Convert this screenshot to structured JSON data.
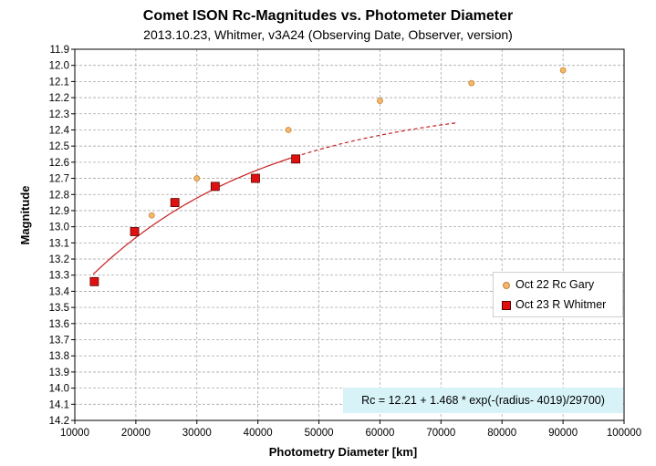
{
  "chart_data": {
    "type": "scatter",
    "title": "Comet ISON Rc-Magnitudes  vs. Photometer Diameter",
    "subtitle": "2013.10.23,  Whitmer, v3A24 (Observing Date, Observer, version)",
    "xlabel": "Photometry Diameter  [km]",
    "ylabel": "Magnitude",
    "xlim": [
      10000,
      100000
    ],
    "ylim": [
      11.9,
      14.2
    ],
    "y_inverted": true,
    "grid": true,
    "x_ticks": [
      "10000",
      "20000",
      "30000",
      "40000",
      "50000",
      "60000",
      "70000",
      "80000",
      "90000",
      "100000"
    ],
    "y_ticks": [
      "11.9",
      "12.0",
      "12.1",
      "12.2",
      "12.3",
      "12.4",
      "12.5",
      "12.6",
      "12.7",
      "12.8",
      "12.9",
      "13.0",
      "13.1",
      "13.2",
      "13.3",
      "13.4",
      "13.5",
      "13.6",
      "13.7",
      "13.8",
      "13.9",
      "14.0",
      "14.1",
      "14.2"
    ],
    "legend_position": "right",
    "series": [
      {
        "name": "Oct 22 Rc Gary",
        "marker": "circle",
        "color": "#f5b768",
        "x": [
          22600,
          30000,
          45000,
          60000,
          75000,
          90000
        ],
        "y": [
          12.93,
          12.7,
          12.4,
          12.22,
          12.11,
          12.03
        ]
      },
      {
        "name": "Oct 23 R Whitmer",
        "marker": "square",
        "color": "#e01010",
        "x": [
          13200,
          19800,
          26400,
          33000,
          39600,
          46200
        ],
        "y": [
          13.34,
          13.03,
          12.85,
          12.75,
          12.7,
          12.58
        ]
      }
    ],
    "fit": {
      "color": "#c81e1e",
      "solid_range": [
        13000,
        46200
      ],
      "dashed_range": [
        46200,
        72500
      ],
      "a": 12.21,
      "b": 1.468,
      "r0": 4019,
      "scale": 29700
    },
    "annotation": "Rc = 12.21 + 1.468  * exp(-(radius- 4019)/29700)"
  }
}
